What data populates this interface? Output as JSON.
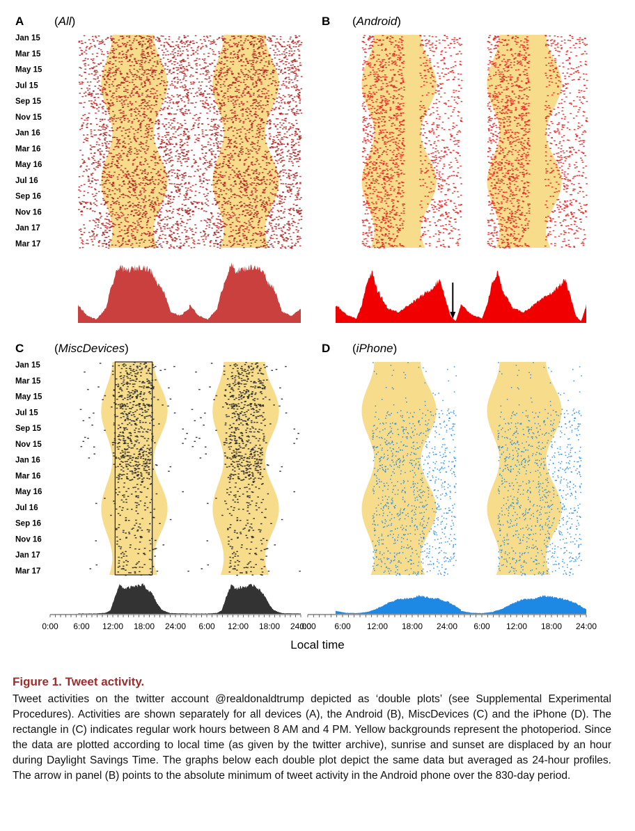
{
  "figure": {
    "panels": [
      {
        "letter": "A",
        "title_pre": "(",
        "title_it": "All",
        "title_post": ")"
      },
      {
        "letter": "B",
        "title_pre": "(",
        "title_it": "Android",
        "title_post": ")"
      },
      {
        "letter": "C",
        "title_pre": "(",
        "title_it": "MiscDevices",
        "title_post": ")"
      },
      {
        "letter": "D",
        "title_pre": "(",
        "title_it": "iPhone",
        "title_post": ")"
      }
    ],
    "x_axis_label": "Local time"
  },
  "chart_data": [
    {
      "type": "heatmap",
      "panel": "A",
      "title": "(All)",
      "y_tick_labels": [
        "Jan 15",
        "Mar 15",
        "May 15",
        "Jul 15",
        "Sep 15",
        "Nov 15",
        "Jan 16",
        "Mar 16",
        "May 16",
        "Jul 16",
        "Sep 16",
        "Nov 16",
        "Jan 17",
        "Mar 17"
      ],
      "x_range_hours": [
        0,
        48
      ],
      "double_plot": true,
      "dot_color": "#b01e1e",
      "photoperiod_color": "#f7dc8b",
      "profile": {
        "type": "area",
        "color": "#c9403f",
        "x_hours": [
          0,
          2,
          4,
          6,
          7,
          8,
          9,
          10,
          12,
          14,
          16,
          17,
          18,
          19,
          20,
          22,
          24
        ],
        "relative_activity": [
          0.25,
          0.1,
          0.05,
          0.2,
          0.45,
          0.65,
          0.8,
          0.72,
          0.75,
          0.78,
          0.7,
          0.55,
          0.5,
          0.35,
          0.15,
          0.1,
          0.2
        ]
      }
    },
    {
      "type": "heatmap",
      "panel": "B",
      "title": "(Android)",
      "y_tick_labels": [],
      "x_range_hours": [
        0,
        48
      ],
      "double_plot": true,
      "dot_color": "#e02020",
      "photoperiod_color": "#f7dc8b",
      "profile": {
        "type": "area",
        "color": "#f00000",
        "x_hours": [
          0,
          2,
          4,
          5,
          6,
          7,
          8,
          10,
          12,
          14,
          16,
          18,
          20,
          21,
          22,
          23,
          24
        ],
        "relative_activity": [
          0.25,
          0.12,
          0.06,
          0.25,
          0.55,
          0.7,
          0.45,
          0.2,
          0.15,
          0.25,
          0.35,
          0.45,
          0.6,
          0.35,
          0.1,
          0.02,
          0.25
        ]
      },
      "annotation": "arrow marks absolute minimum of tweet activity"
    },
    {
      "type": "heatmap",
      "panel": "C",
      "title": "(MiscDevices)",
      "y_tick_labels": [
        "Jan 15",
        "Mar 15",
        "May 15",
        "Jul 15",
        "Sep 15",
        "Nov 15",
        "Jan 16",
        "Mar 16",
        "May 16",
        "Jul 16",
        "Sep 16",
        "Nov 16",
        "Jan 17",
        "Mar 17"
      ],
      "x_range_hours": [
        0,
        48
      ],
      "double_plot": true,
      "dot_color": "#222222",
      "photoperiod_color": "#f7dc8b",
      "work_hours_box_hours": [
        8,
        16
      ],
      "profile": {
        "type": "area",
        "color": "#333333",
        "x_hours": [
          0,
          4,
          6,
          7,
          8,
          9,
          10,
          12,
          14,
          16,
          17,
          18,
          19,
          20,
          24
        ],
        "relative_activity": [
          0.01,
          0.01,
          0.03,
          0.1,
          0.5,
          0.8,
          0.7,
          0.75,
          0.8,
          0.55,
          0.3,
          0.12,
          0.06,
          0.02,
          0.01
        ]
      },
      "x_tick_labels": [
        "0:00",
        "6:00",
        "12:00",
        "18:00",
        "24:00",
        "6:00",
        "12:00",
        "18:00",
        "24:00"
      ]
    },
    {
      "type": "heatmap",
      "panel": "D",
      "title": "(iPhone)",
      "y_tick_labels": [],
      "x_range_hours": [
        0,
        48
      ],
      "double_plot": true,
      "dot_color": "#1e88e5",
      "photoperiod_color": "#f7dc8b",
      "profile": {
        "type": "area",
        "color": "#1e88e5",
        "x_hours": [
          0,
          2,
          4,
          6,
          8,
          10,
          12,
          14,
          16,
          18,
          20,
          22,
          24
        ],
        "relative_activity": [
          0.08,
          0.03,
          0.02,
          0.05,
          0.15,
          0.3,
          0.4,
          0.42,
          0.5,
          0.45,
          0.4,
          0.3,
          0.12
        ]
      },
      "x_tick_labels": [
        "0:00",
        "6:00",
        "12:00",
        "18:00",
        "24:00",
        "6:00",
        "12:00",
        "18:00",
        "24:00"
      ]
    }
  ],
  "caption": {
    "title": "Figure 1. Tweet activity.",
    "body": "Tweet activities on the twitter account @realdonaldtrump depicted as ‘double plots’ (see Supplemental Experimental Procedures). Activities are shown separately for all devices (A), the Android (B), MiscDevices (C) and the iPhone (D). The rectangle in (C) indicates regular work hours between 8 AM and 4 PM. Yellow backgrounds represent the photoperiod. Since the data are plotted according to local time (as given by the twitter archive), sunrise and sunset are displaced by an hour during Daylight Savings Time. The graphs below each double plot depict the same data but averaged as 24-hour profiles. The arrow in panel (B) points to the absolute minimum of tweet activity in the Android phone over the 830-day period."
  }
}
